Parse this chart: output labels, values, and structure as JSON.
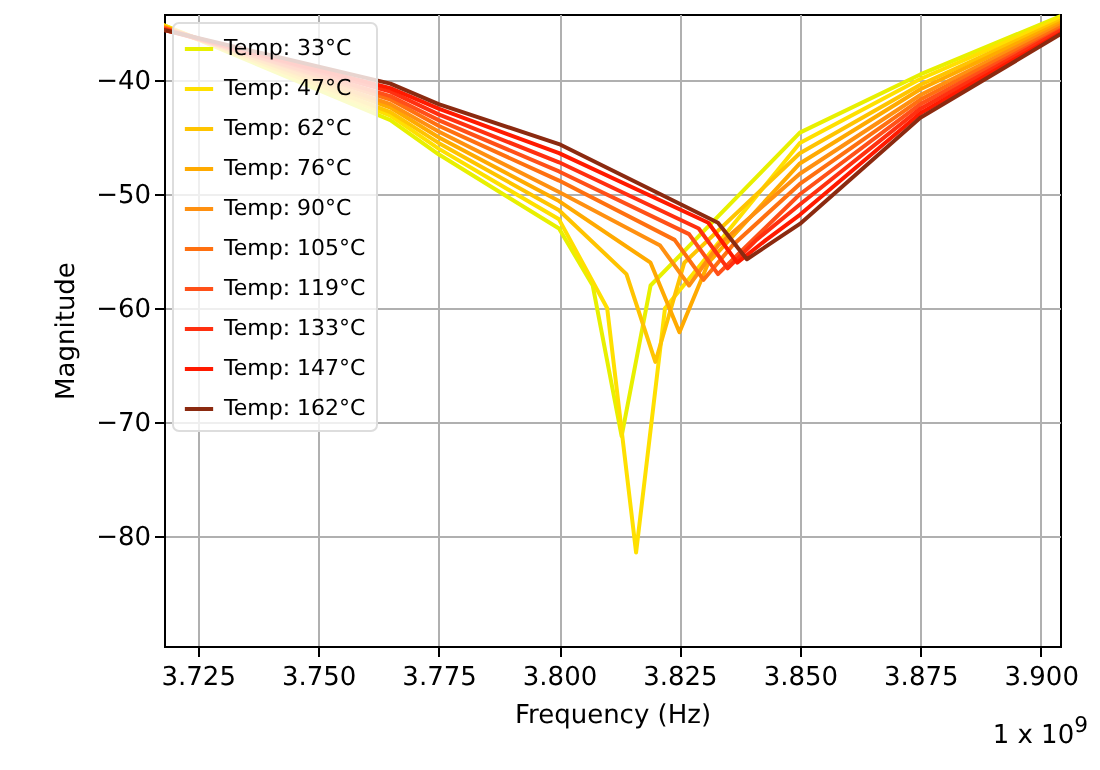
{
  "chart_data": {
    "type": "line",
    "xlabel": "Frequency (Hz)",
    "ylabel": "Magnitude",
    "annotations": [
      "1 x 10$^{9}$"
    ],
    "xlim": [
      3.718,
      3.904
    ],
    "ylim": [
      -89.6,
      -34.2
    ],
    "xticks": [
      {
        "value": 3.725,
        "label": "3.725"
      },
      {
        "value": 3.75,
        "label": "3.750"
      },
      {
        "value": 3.775,
        "label": "3.775"
      },
      {
        "value": 3.8,
        "label": "3.800"
      },
      {
        "value": 3.825,
        "label": "3.825"
      },
      {
        "value": 3.85,
        "label": "3.850"
      },
      {
        "value": 3.875,
        "label": "3.875"
      },
      {
        "value": 3.9,
        "label": "3.900"
      }
    ],
    "yticks": [
      -80,
      -70,
      -60,
      -50,
      -40
    ],
    "grid": true,
    "legend": "top left",
    "series": [
      {
        "name": "Temp: 33°C",
        "color": "#e8f000",
        "x": [
          3.718,
          3.765,
          3.775,
          3.8,
          3.807,
          3.813,
          3.819,
          3.85,
          3.875,
          3.904
        ],
        "values": [
          -35.2,
          -43.5,
          -46.5,
          -53,
          -58,
          -71.2,
          -58,
          -44.6,
          -39.5,
          -34.4
        ]
      },
      {
        "name": "Temp: 47°C",
        "color": "#ffe000",
        "x": [
          3.718,
          3.765,
          3.775,
          3.8,
          3.81,
          3.816,
          3.822,
          3.85,
          3.875,
          3.904
        ],
        "values": [
          -35.2,
          -43.1,
          -46,
          -52.2,
          -60,
          -81.4,
          -60,
          -45.5,
          -39.9,
          -34.6
        ]
      },
      {
        "name": "Temp: 62°C",
        "color": "#ffc400",
        "x": [
          3.718,
          3.765,
          3.775,
          3.8,
          3.814,
          3.82,
          3.826,
          3.85,
          3.875,
          3.904
        ],
        "values": [
          -35.3,
          -42.8,
          -45.5,
          -51.4,
          -57,
          -64.7,
          -56,
          -46.4,
          -40.4,
          -34.8
        ]
      },
      {
        "name": "Temp: 76°C",
        "color": "#ffaa00",
        "x": [
          3.718,
          3.765,
          3.775,
          3.8,
          3.819,
          3.825,
          3.831,
          3.85,
          3.875,
          3.904
        ],
        "values": [
          -35.3,
          -42.4,
          -45,
          -50.6,
          -56,
          -62.1,
          -56,
          -47.3,
          -40.8,
          -35
        ]
      },
      {
        "name": "Temp: 90°C",
        "color": "#ff9010",
        "x": [
          3.718,
          3.765,
          3.775,
          3.8,
          3.821,
          3.827,
          3.833,
          3.85,
          3.875,
          3.904
        ],
        "values": [
          -35.4,
          -42.1,
          -44.5,
          -49.8,
          -54.5,
          -58,
          -54.5,
          -48.2,
          -41.3,
          -35.2
        ]
      },
      {
        "name": "Temp: 105°C",
        "color": "#ff7010",
        "x": [
          3.718,
          3.765,
          3.775,
          3.8,
          3.824,
          3.83,
          3.836,
          3.85,
          3.875,
          3.904
        ],
        "values": [
          -35.4,
          -41.7,
          -44,
          -48.8,
          -54,
          -57.5,
          -54.5,
          -49.1,
          -41.7,
          -35.4
        ]
      },
      {
        "name": "Temp: 119°C",
        "color": "#ff5018",
        "x": [
          3.718,
          3.765,
          3.775,
          3.8,
          3.827,
          3.833,
          3.839,
          3.85,
          3.875,
          3.904
        ],
        "values": [
          -35.5,
          -41.4,
          -43.5,
          -48,
          -53.5,
          -57,
          -54.5,
          -50,
          -42.1,
          -35.6
        ]
      },
      {
        "name": "Temp: 133°C",
        "color": "#ff3010",
        "x": [
          3.718,
          3.765,
          3.775,
          3.8,
          3.829,
          3.835,
          3.841,
          3.85,
          3.875,
          3.904
        ],
        "values": [
          -35.5,
          -41,
          -43,
          -47.2,
          -53,
          -56.5,
          -54,
          -50.9,
          -42.5,
          -35.7
        ]
      },
      {
        "name": "Temp: 147°C",
        "color": "#ff1a00",
        "x": [
          3.718,
          3.765,
          3.775,
          3.8,
          3.831,
          3.837,
          3.843,
          3.85,
          3.875,
          3.904
        ],
        "values": [
          -35.6,
          -40.7,
          -42.5,
          -46.4,
          -52.5,
          -56,
          -54,
          -51.8,
          -42.9,
          -35.9
        ]
      },
      {
        "name": "Temp: 162°C",
        "color": "#8b2a10",
        "x": [
          3.718,
          3.765,
          3.775,
          3.8,
          3.833,
          3.839,
          3.845,
          3.85,
          3.875,
          3.904
        ],
        "values": [
          -35.6,
          -40.3,
          -42.1,
          -45.6,
          -52.5,
          -55.7,
          -54,
          -52.6,
          -43.3,
          -36
        ]
      }
    ]
  }
}
